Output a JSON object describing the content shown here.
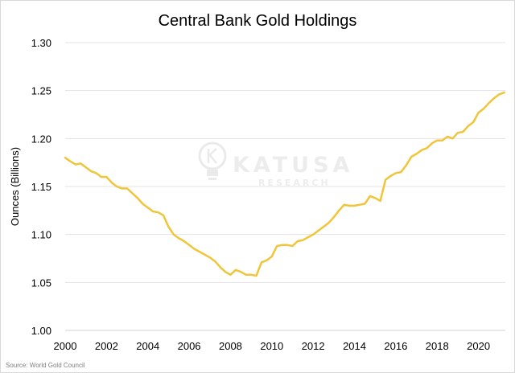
{
  "chart_data": {
    "type": "line",
    "title": "Central Bank Gold Holdings",
    "ylabel": "Ounces (Billions)",
    "xlabel": "",
    "ylim": [
      1.0,
      1.3
    ],
    "xlim": [
      2000,
      2021.3
    ],
    "grid": "horizontal",
    "y_ticks": [
      "1.00",
      "1.05",
      "1.10",
      "1.15",
      "1.20",
      "1.25",
      "1.30"
    ],
    "x_ticks": [
      "2000",
      "2002",
      "2004",
      "2006",
      "2008",
      "2010",
      "2012",
      "2014",
      "2016",
      "2018",
      "2020"
    ],
    "line_color": "#f0c53a",
    "series": [
      {
        "x": [
          2000.0,
          2000.2,
          2000.5,
          2000.75,
          2001.0,
          2001.25,
          2001.5,
          2001.75,
          2002.0,
          2002.25,
          2002.5,
          2002.75,
          2003.0,
          2003.25,
          2003.5,
          2003.75,
          2004.0,
          2004.25,
          2004.5,
          2004.75,
          2005.0,
          2005.25,
          2005.5,
          2005.75,
          2006.0,
          2006.25,
          2006.5,
          2006.75,
          2007.0,
          2007.25,
          2007.5,
          2007.75,
          2008.0,
          2008.25,
          2008.5,
          2008.75,
          2009.0,
          2009.25,
          2009.5,
          2009.75,
          2010.0,
          2010.25,
          2010.5,
          2010.75,
          2011.0,
          2011.25,
          2011.5,
          2011.75,
          2012.0,
          2012.25,
          2012.5,
          2012.75,
          2013.0,
          2013.25,
          2013.5,
          2013.75,
          2014.0,
          2014.25,
          2014.5,
          2014.75,
          2015.0,
          2015.25,
          2015.5,
          2015.75,
          2016.0,
          2016.25,
          2016.5,
          2016.75,
          2017.0,
          2017.25,
          2017.5,
          2017.75,
          2018.0,
          2018.25,
          2018.5,
          2018.75,
          2019.0,
          2019.25,
          2019.5,
          2019.75,
          2020.0,
          2020.25,
          2020.5,
          2020.75,
          2021.0,
          2021.25
        ],
        "values": [
          1.18,
          1.177,
          1.173,
          1.174,
          1.17,
          1.166,
          1.164,
          1.16,
          1.16,
          1.154,
          1.15,
          1.148,
          1.148,
          1.143,
          1.138,
          1.132,
          1.128,
          1.124,
          1.123,
          1.12,
          1.108,
          1.1,
          1.096,
          1.093,
          1.089,
          1.085,
          1.082,
          1.079,
          1.076,
          1.072,
          1.066,
          1.061,
          1.058,
          1.063,
          1.061,
          1.058,
          1.058,
          1.057,
          1.071,
          1.073,
          1.077,
          1.088,
          1.089,
          1.089,
          1.088,
          1.093,
          1.094,
          1.097,
          1.1,
          1.104,
          1.108,
          1.112,
          1.118,
          1.125,
          1.131,
          1.13,
          1.13,
          1.131,
          1.132,
          1.14,
          1.138,
          1.135,
          1.157,
          1.161,
          1.164,
          1.165,
          1.172,
          1.181,
          1.184,
          1.188,
          1.19,
          1.195,
          1.198,
          1.198,
          1.202,
          1.2,
          1.206,
          1.207,
          1.213,
          1.217,
          1.227,
          1.231,
          1.237,
          1.242,
          1.246,
          1.248
        ]
      }
    ]
  },
  "watermark": {
    "name": "KATUSA",
    "sub": "RESEARCH",
    "icon": "lightbulb-k-icon"
  },
  "source": "Source: World Gold Council"
}
